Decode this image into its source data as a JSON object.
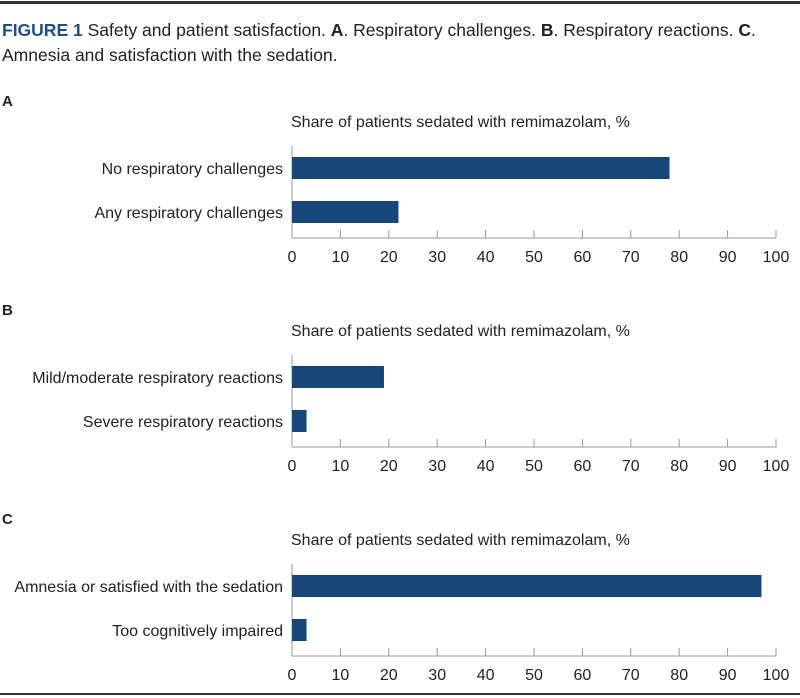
{
  "caption": {
    "figure_label": "FIGURE 1",
    "text1": " Safety and patient satisfaction. ",
    "a": "A",
    "text2": ". Respiratory challenges. ",
    "b": "B",
    "text3": ". Respiratory reactions. ",
    "c": "C",
    "text4": ". Amnesia and satisfaction with the sedation."
  },
  "colors": {
    "bar": "#16467a",
    "accent": "#1f4e85"
  },
  "chart_data": [
    {
      "type": "bar",
      "panel": "A",
      "title": "Share of patients sedated with remimazolam, %",
      "categories": [
        "No respiratory challenges",
        "Any respiratory challenges"
      ],
      "values": [
        78,
        22
      ],
      "xlim": [
        0,
        100
      ],
      "xticks": [
        0,
        10,
        20,
        30,
        40,
        50,
        60,
        70,
        80,
        90,
        100
      ]
    },
    {
      "type": "bar",
      "panel": "B",
      "title": "Share of patients sedated with remimazolam, %",
      "categories": [
        "Mild/moderate respiratory reactions",
        "Severe respiratory reactions"
      ],
      "values": [
        19,
        3
      ],
      "xlim": [
        0,
        100
      ],
      "xticks": [
        0,
        10,
        20,
        30,
        40,
        50,
        60,
        70,
        80,
        90,
        100
      ]
    },
    {
      "type": "bar",
      "panel": "C",
      "title": "Share of patients sedated with remimazolam, %",
      "categories": [
        "Amnesia or satisfied with the sedation",
        "Too cognitively impaired"
      ],
      "values": [
        97,
        3
      ],
      "xlim": [
        0,
        100
      ],
      "xticks": [
        0,
        10,
        20,
        30,
        40,
        50,
        60,
        70,
        80,
        90,
        100
      ]
    }
  ]
}
